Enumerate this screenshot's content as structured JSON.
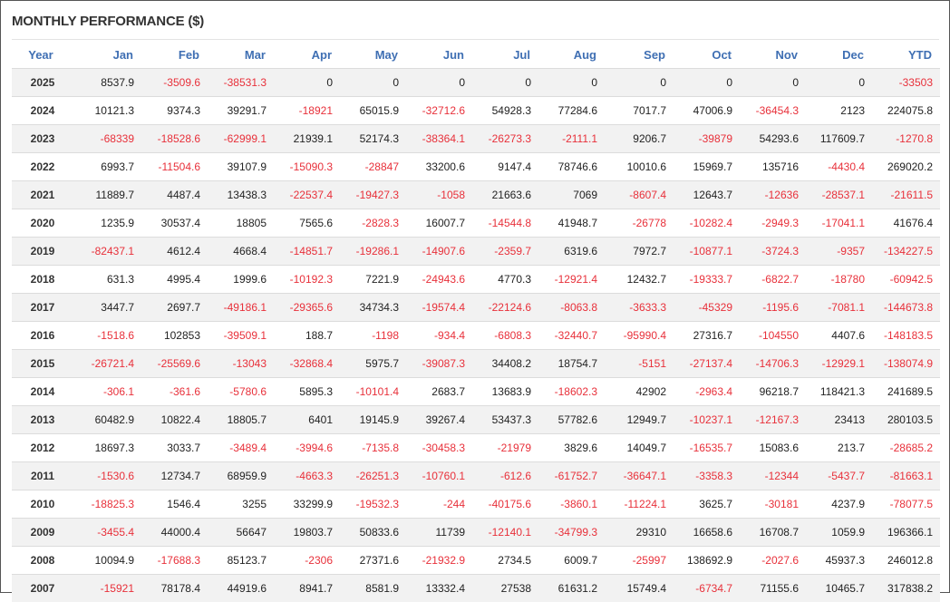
{
  "title": "MONTHLY PERFORMANCE ($)",
  "colors": {
    "header_text": "#3f6fb3",
    "negative": "#e8303a",
    "positive": "#222222",
    "stripe": "#f2f2f2"
  },
  "headers": [
    "Year",
    "Jan",
    "Feb",
    "Mar",
    "Apr",
    "May",
    "Jun",
    "Jul",
    "Aug",
    "Sep",
    "Oct",
    "Nov",
    "Dec",
    "YTD"
  ],
  "rows": [
    [
      "2025",
      "8537.9",
      "-3509.6",
      "-38531.3",
      "0",
      "0",
      "0",
      "0",
      "0",
      "0",
      "0",
      "0",
      "0",
      "-33503"
    ],
    [
      "2024",
      "10121.3",
      "9374.3",
      "39291.7",
      "-18921",
      "65015.9",
      "-32712.6",
      "54928.3",
      "77284.6",
      "7017.7",
      "47006.9",
      "-36454.3",
      "2123",
      "224075.8"
    ],
    [
      "2023",
      "-68339",
      "-18528.6",
      "-62999.1",
      "21939.1",
      "52174.3",
      "-38364.1",
      "-26273.3",
      "-2111.1",
      "9206.7",
      "-39879",
      "54293.6",
      "117609.7",
      "-1270.8"
    ],
    [
      "2022",
      "6993.7",
      "-11504.6",
      "39107.9",
      "-15090.3",
      "-28847",
      "33200.6",
      "9147.4",
      "78746.6",
      "10010.6",
      "15969.7",
      "135716",
      "-4430.4",
      "269020.2"
    ],
    [
      "2021",
      "11889.7",
      "4487.4",
      "13438.3",
      "-22537.4",
      "-19427.3",
      "-1058",
      "21663.6",
      "7069",
      "-8607.4",
      "12643.7",
      "-12636",
      "-28537.1",
      "-21611.5"
    ],
    [
      "2020",
      "1235.9",
      "30537.4",
      "18805",
      "7565.6",
      "-2828.3",
      "16007.7",
      "-14544.8",
      "41948.7",
      "-26778",
      "-10282.4",
      "-2949.3",
      "-17041.1",
      "41676.4"
    ],
    [
      "2019",
      "-82437.1",
      "4612.4",
      "4668.4",
      "-14851.7",
      "-19286.1",
      "-14907.6",
      "-2359.7",
      "6319.6",
      "7972.7",
      "-10877.1",
      "-3724.3",
      "-9357",
      "-134227.5"
    ],
    [
      "2018",
      "631.3",
      "4995.4",
      "1999.6",
      "-10192.3",
      "7221.9",
      "-24943.6",
      "4770.3",
      "-12921.4",
      "12432.7",
      "-19333.7",
      "-6822.7",
      "-18780",
      "-60942.5"
    ],
    [
      "2017",
      "3447.7",
      "2697.7",
      "-49186.1",
      "-29365.6",
      "34734.3",
      "-19574.4",
      "-22124.6",
      "-8063.8",
      "-3633.3",
      "-45329",
      "-1195.6",
      "-7081.1",
      "-144673.8"
    ],
    [
      "2016",
      "-1518.6",
      "102853",
      "-39509.1",
      "188.7",
      "-1198",
      "-934.4",
      "-6808.3",
      "-32440.7",
      "-95990.4",
      "27316.7",
      "-104550",
      "4407.6",
      "-148183.5"
    ],
    [
      "2015",
      "-26721.4",
      "-25569.6",
      "-13043",
      "-32868.4",
      "5975.7",
      "-39087.3",
      "34408.2",
      "18754.7",
      "-5151",
      "-27137.4",
      "-14706.3",
      "-12929.1",
      "-138074.9"
    ],
    [
      "2014",
      "-306.1",
      "-361.6",
      "-5780.6",
      "5895.3",
      "-10101.4",
      "2683.7",
      "13683.9",
      "-18602.3",
      "42902",
      "-2963.4",
      "96218.7",
      "118421.3",
      "241689.5"
    ],
    [
      "2013",
      "60482.9",
      "10822.4",
      "18805.7",
      "6401",
      "19145.9",
      "39267.4",
      "53437.3",
      "57782.6",
      "12949.7",
      "-10237.1",
      "-12167.3",
      "23413",
      "280103.5"
    ],
    [
      "2012",
      "18697.3",
      "3033.7",
      "-3489.4",
      "-3994.6",
      "-7135.8",
      "-30458.3",
      "-21979",
      "3829.6",
      "14049.7",
      "-16535.7",
      "15083.6",
      "213.7",
      "-28685.2"
    ],
    [
      "2011",
      "-1530.6",
      "12734.7",
      "68959.9",
      "-4663.3",
      "-26251.3",
      "-10760.1",
      "-612.6",
      "-61752.7",
      "-36647.1",
      "-3358.3",
      "-12344",
      "-5437.7",
      "-81663.1"
    ],
    [
      "2010",
      "-18825.3",
      "1546.4",
      "3255",
      "33299.9",
      "-19532.3",
      "-244",
      "-40175.6",
      "-3860.1",
      "-11224.1",
      "3625.7",
      "-30181",
      "4237.9",
      "-78077.5"
    ],
    [
      "2009",
      "-3455.4",
      "44000.4",
      "56647",
      "19803.7",
      "50833.6",
      "11739",
      "-12140.1",
      "-34799.3",
      "29310",
      "16658.6",
      "16708.7",
      "1059.9",
      "196366.1"
    ],
    [
      "2008",
      "10094.9",
      "-17688.3",
      "85123.7",
      "-2306",
      "27371.6",
      "-21932.9",
      "2734.5",
      "6009.7",
      "-25997",
      "138692.9",
      "-2027.6",
      "45937.3",
      "246012.8"
    ],
    [
      "2007",
      "-15921",
      "78178.4",
      "44919.6",
      "8941.7",
      "8581.9",
      "13332.4",
      "27538",
      "61631.2",
      "15749.4",
      "-6734.7",
      "71155.6",
      "10465.7",
      "317838.2"
    ]
  ]
}
